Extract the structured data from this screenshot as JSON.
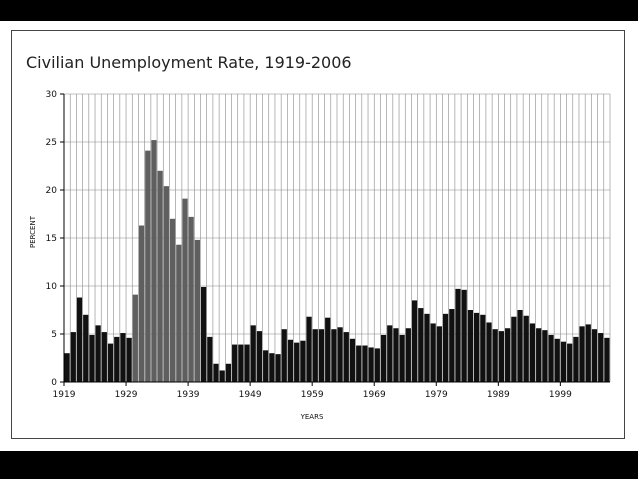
{
  "chart_data": {
    "type": "bar",
    "title": "Civilian Unemployment Rate, 1919-2006",
    "xlabel": "YEARS",
    "ylabel": "PERCENT",
    "ylim": [
      0,
      30
    ],
    "yticks": [
      0,
      5,
      10,
      15,
      20,
      25,
      30
    ],
    "xticks": [
      1919,
      1929,
      1939,
      1949,
      1959,
      1969,
      1979,
      1989,
      1999
    ],
    "grid": true,
    "colors": {
      "normal": "#111111",
      "depression": "#5f5f5f",
      "grid": "#888888"
    },
    "highlight_range": [
      1930,
      1940
    ],
    "x": [
      1919,
      1920,
      1921,
      1922,
      1923,
      1924,
      1925,
      1926,
      1927,
      1928,
      1929,
      1930,
      1931,
      1932,
      1933,
      1934,
      1935,
      1936,
      1937,
      1938,
      1939,
      1940,
      1941,
      1942,
      1943,
      1944,
      1945,
      1946,
      1947,
      1948,
      1949,
      1950,
      1951,
      1952,
      1953,
      1954,
      1955,
      1956,
      1957,
      1958,
      1959,
      1960,
      1961,
      1962,
      1963,
      1964,
      1965,
      1966,
      1967,
      1968,
      1969,
      1970,
      1971,
      1972,
      1973,
      1974,
      1975,
      1976,
      1977,
      1978,
      1979,
      1980,
      1981,
      1982,
      1983,
      1984,
      1985,
      1986,
      1987,
      1988,
      1989,
      1990,
      1991,
      1992,
      1993,
      1994,
      1995,
      1996,
      1997,
      1998,
      1999,
      2000,
      2001,
      2002,
      2003,
      2004,
      2005,
      2006
    ],
    "values": [
      3.0,
      5.2,
      8.8,
      7.0,
      4.9,
      5.9,
      5.2,
      4.0,
      4.7,
      5.1,
      4.6,
      9.1,
      16.3,
      24.1,
      25.2,
      22.0,
      20.4,
      17.0,
      14.3,
      19.1,
      17.2,
      14.8,
      9.9,
      4.7,
      1.9,
      1.2,
      1.9,
      3.9,
      3.9,
      3.9,
      5.9,
      5.3,
      3.3,
      3.0,
      2.9,
      5.5,
      4.4,
      4.1,
      4.3,
      6.8,
      5.5,
      5.5,
      6.7,
      5.5,
      5.7,
      5.2,
      4.5,
      3.8,
      3.8,
      3.6,
      3.5,
      4.9,
      5.9,
      5.6,
      4.9,
      5.6,
      8.5,
      7.7,
      7.1,
      6.1,
      5.8,
      7.1,
      7.6,
      9.7,
      9.6,
      7.5,
      7.2,
      7.0,
      6.2,
      5.5,
      5.3,
      5.6,
      6.8,
      7.5,
      6.9,
      6.1,
      5.6,
      5.4,
      4.9,
      4.5,
      4.2,
      4.0,
      4.7,
      5.8,
      6.0,
      5.5,
      5.1,
      4.6
    ]
  }
}
